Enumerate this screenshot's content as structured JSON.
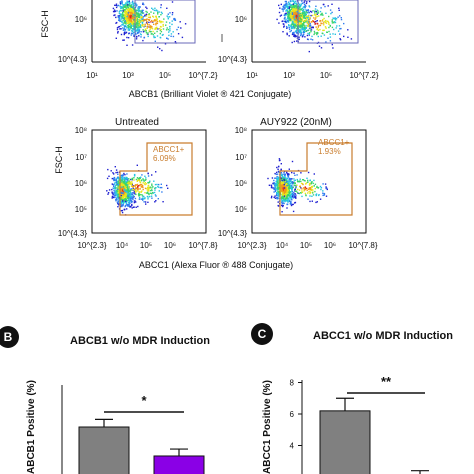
{
  "flow": {
    "top_row": {
      "y_axis_label": "FSC-H",
      "y_ticks": [
        "10⁶",
        "10^{4.3}"
      ],
      "right_panel_y_ticks": [
        "10⁶",
        "10^{4.3}"
      ],
      "x_ticks": [
        "10¹",
        "10³",
        "10⁵",
        "10^{7.2}"
      ],
      "x_axis_label": "ABCB1 (Brilliant Violet ® 421 Conjugate)"
    },
    "bottom_row": {
      "panel_titles": [
        "Untreated",
        "AUY922 (20nM)"
      ],
      "gate_labels": [
        "ABCC1+",
        "ABCC1+"
      ],
      "gate_percents": [
        "6.09%",
        "1.93%"
      ],
      "y_axis_label": "FSC-H",
      "y_ticks": [
        "10⁸",
        "10⁷",
        "10⁶",
        "10⁵",
        "10^{4.3}"
      ],
      "x_ticks": [
        "10^{2.3}",
        "10⁴",
        "10⁵",
        "10⁶",
        "10^{7.8}"
      ],
      "x_axis_label": "ABCC1 (Alexa Fluor ® 488 Conjugate)"
    }
  },
  "panel_B": {
    "letter": "B",
    "title": "ABCB1 w/o MDR Induction",
    "ylabel": "ABCB1 Positive (%)",
    "sig": "*"
  },
  "panel_C": {
    "letter": "C",
    "title": "ABCC1 w/o MDR Induction",
    "ylabel": "ABCC1 Positive (%)",
    "sig": "**",
    "y_ticks": [
      "8",
      "6",
      "4"
    ]
  },
  "chart_data": [
    {
      "type": "bar",
      "title": "ABCB1 w/o MDR Induction",
      "ylabel": "ABCB1 Positive (%)",
      "values": [
        5.5,
        3.4
      ],
      "errors": [
        0.55,
        0.5
      ],
      "bar_colors": [
        "#808080",
        "#8a00e6"
      ],
      "significance": "*"
    },
    {
      "type": "bar",
      "title": "ABCC1 w/o MDR Induction",
      "ylabel": "ABCC1 Positive (%)",
      "yticks": [
        4,
        6,
        8
      ],
      "values": [
        6.2,
        2.1
      ],
      "errors": [
        0.8,
        0.3
      ],
      "bar_colors": [
        "#808080",
        "#808080"
      ],
      "significance": "**"
    }
  ],
  "colors": {
    "gate": "#c97d2e",
    "gate_top": "#6a6ab8",
    "accent": "#8a00e6"
  }
}
